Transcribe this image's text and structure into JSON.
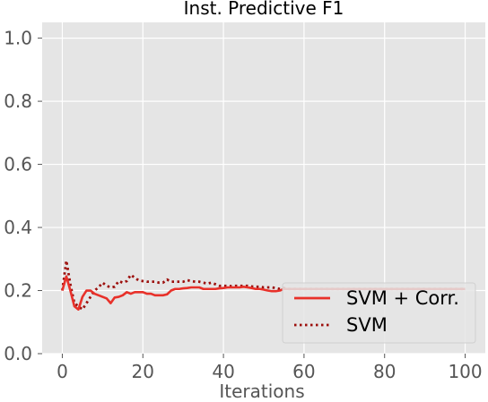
{
  "chart_data": {
    "type": "line",
    "title": "Inst. Predictive F1",
    "xlabel": "Iterations",
    "ylabel": "",
    "xlim": [
      -5,
      105
    ],
    "ylim": [
      0,
      1.05
    ],
    "xticks": [
      0,
      20,
      40,
      60,
      80,
      100
    ],
    "yticks": [
      0.0,
      0.2,
      0.4,
      0.6,
      0.8,
      1.0
    ],
    "xtick_labels": [
      "0",
      "20",
      "40",
      "60",
      "80",
      "100"
    ],
    "ytick_labels": [
      "0.0",
      "0.2",
      "0.4",
      "0.6",
      "0.8",
      "1.0"
    ],
    "grid": true,
    "legend_position": "bottom-right",
    "series": [
      {
        "name": "SVM + Corr.",
        "style": "solid",
        "color": "#e8312a",
        "x": [
          0,
          1,
          2,
          3,
          4,
          5,
          6,
          7,
          8,
          9,
          10,
          11,
          12,
          13,
          14,
          15,
          16,
          17,
          18,
          19,
          20,
          21,
          22,
          23,
          24,
          25,
          26,
          27,
          28,
          29,
          30,
          31,
          32,
          33,
          34,
          35,
          36,
          37,
          38,
          39,
          40,
          41,
          42,
          43,
          44,
          45,
          46,
          47,
          48,
          49,
          50,
          51,
          52,
          53,
          54,
          55,
          56,
          57,
          58,
          59,
          60,
          61,
          62,
          63,
          64,
          65,
          66,
          67,
          68,
          69,
          70,
          71,
          72,
          73,
          74,
          75,
          76,
          77,
          78,
          79,
          80,
          81,
          82,
          83,
          84,
          85,
          86,
          87,
          88,
          89,
          90,
          91,
          92,
          93,
          94,
          95,
          96,
          97,
          98,
          99,
          100
        ],
        "y": [
          0.2,
          0.245,
          0.2,
          0.15,
          0.14,
          0.18,
          0.2,
          0.2,
          0.19,
          0.185,
          0.18,
          0.175,
          0.16,
          0.178,
          0.18,
          0.185,
          0.195,
          0.19,
          0.195,
          0.195,
          0.195,
          0.19,
          0.19,
          0.185,
          0.185,
          0.185,
          0.188,
          0.2,
          0.205,
          0.205,
          0.207,
          0.208,
          0.21,
          0.21,
          0.21,
          0.205,
          0.205,
          0.205,
          0.205,
          0.207,
          0.208,
          0.21,
          0.21,
          0.21,
          0.21,
          0.212,
          0.21,
          0.208,
          0.205,
          0.205,
          0.203,
          0.2,
          0.198,
          0.198,
          0.2,
          0.205,
          0.205,
          0.205,
          0.205,
          0.205,
          0.205,
          0.205,
          0.205,
          0.205,
          0.205,
          0.205,
          0.205,
          0.205,
          0.205,
          0.205,
          0.205,
          0.205,
          0.205,
          0.205,
          0.205,
          0.205,
          0.205,
          0.205,
          0.205,
          0.205,
          0.205,
          0.205,
          0.205,
          0.205,
          0.205,
          0.205,
          0.205,
          0.205,
          0.205,
          0.205,
          0.205,
          0.205,
          0.205,
          0.205,
          0.205,
          0.205,
          0.205,
          0.205,
          0.205,
          0.205,
          0.205
        ]
      },
      {
        "name": "SVM",
        "style": "dotted",
        "color": "#9c0f0c",
        "x": [
          0,
          1,
          2,
          3,
          4,
          5,
          6,
          7,
          8,
          9,
          10,
          11,
          12,
          13,
          14,
          15,
          16,
          17,
          18,
          19,
          20,
          21,
          22,
          23,
          24,
          25,
          26,
          27,
          28,
          29,
          30,
          31,
          32,
          33,
          34,
          35,
          36,
          37,
          38,
          39,
          40,
          41,
          42,
          43,
          44,
          45,
          46,
          47,
          48,
          49,
          50,
          51,
          52,
          53,
          54,
          55,
          56,
          57,
          58,
          59,
          60,
          61,
          62,
          63,
          64,
          65,
          66,
          67,
          68,
          69,
          70,
          71,
          72,
          73,
          74,
          75,
          76,
          77,
          78,
          79,
          80,
          81,
          82,
          83,
          84,
          85,
          86,
          87,
          88,
          89,
          90,
          91,
          92,
          93,
          94,
          95,
          96,
          97,
          98,
          99,
          100
        ],
        "y": [
          0.2,
          0.295,
          0.22,
          0.16,
          0.15,
          0.14,
          0.16,
          0.18,
          0.2,
          0.21,
          0.225,
          0.215,
          0.21,
          0.212,
          0.23,
          0.225,
          0.23,
          0.25,
          0.24,
          0.232,
          0.23,
          0.228,
          0.228,
          0.228,
          0.225,
          0.225,
          0.235,
          0.228,
          0.228,
          0.228,
          0.228,
          0.233,
          0.23,
          0.228,
          0.228,
          0.225,
          0.222,
          0.225,
          0.22,
          0.215,
          0.215,
          0.215,
          0.214,
          0.215,
          0.215,
          0.215,
          0.215,
          0.213,
          0.212,
          0.212,
          0.21,
          0.21,
          0.21,
          0.208,
          0.205,
          0.208,
          0.205,
          0.205,
          0.205,
          0.205,
          0.205,
          0.205,
          0.205,
          0.205,
          0.205,
          0.205,
          0.205,
          0.205,
          0.205,
          0.205,
          0.205,
          0.205,
          0.205,
          0.205,
          0.205,
          0.205,
          0.205,
          0.205,
          0.205,
          0.205,
          0.205,
          0.205,
          0.205,
          0.205,
          0.205,
          0.205,
          0.205,
          0.205,
          0.205,
          0.205,
          0.205,
          0.205,
          0.205,
          0.205,
          0.205,
          0.205,
          0.205,
          0.205,
          0.205,
          0.205,
          0.205
        ]
      }
    ]
  },
  "style": {
    "plot_background": "#e5e5e5",
    "grid_color": "#ffffff",
    "tick_color": "#555555"
  }
}
